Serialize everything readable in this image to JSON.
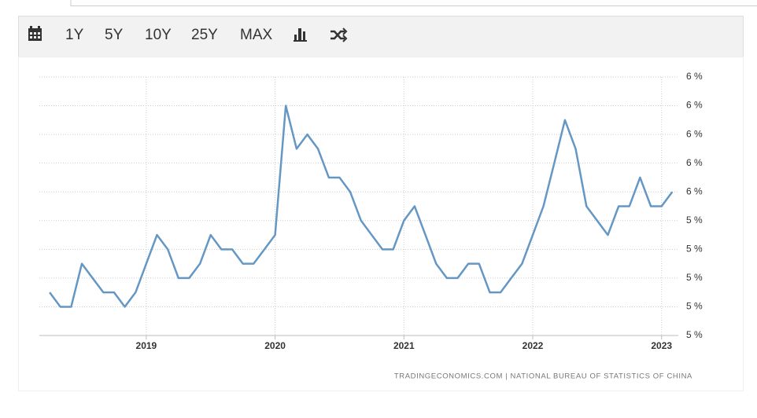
{
  "toolbar": {
    "buttons": [
      "1Y",
      "5Y",
      "10Y",
      "25Y",
      "MAX"
    ]
  },
  "chart_data": {
    "type": "line",
    "source": "TRADINGECONOMICS.COM | NATIONAL BUREAU OF STATISTICS OF CHINA",
    "x": [
      2018.25,
      2018.333,
      2018.417,
      2018.5,
      2018.583,
      2018.667,
      2018.75,
      2018.833,
      2018.917,
      2019.0,
      2019.083,
      2019.167,
      2019.25,
      2019.333,
      2019.417,
      2019.5,
      2019.583,
      2019.667,
      2019.75,
      2019.833,
      2019.917,
      2020.0,
      2020.083,
      2020.167,
      2020.25,
      2020.333,
      2020.417,
      2020.5,
      2020.583,
      2020.667,
      2020.75,
      2020.833,
      2020.917,
      2021.0,
      2021.083,
      2021.167,
      2021.25,
      2021.333,
      2021.417,
      2021.5,
      2021.583,
      2021.667,
      2021.75,
      2021.833,
      2021.917,
      2022.0,
      2022.083,
      2022.167,
      2022.25,
      2022.333,
      2022.417,
      2022.5,
      2022.583,
      2022.667,
      2022.75,
      2022.833,
      2022.917,
      2023.0,
      2023.083
    ],
    "series": [
      {
        "color": "#6597c4",
        "values": [
          4.9,
          4.8,
          4.8,
          5.1,
          5.0,
          4.9,
          4.9,
          4.8,
          4.9,
          5.1,
          5.3,
          5.2,
          5.0,
          5.0,
          5.1,
          5.3,
          5.2,
          5.2,
          5.1,
          5.1,
          5.2,
          5.3,
          6.2,
          5.9,
          6.0,
          5.9,
          5.7,
          5.7,
          5.6,
          5.4,
          5.3,
          5.2,
          5.2,
          5.4,
          5.5,
          5.3,
          5.1,
          5.0,
          5.0,
          5.1,
          5.1,
          4.9,
          4.9,
          5.0,
          5.1,
          5.3,
          5.5,
          5.8,
          6.1,
          5.9,
          5.5,
          5.4,
          5.3,
          5.5,
          5.5,
          5.7,
          5.5,
          5.5,
          5.6
        ]
      }
    ],
    "xlim": [
      2018.17,
      2023.13
    ],
    "xticks": [
      2019,
      2020,
      2021,
      2022,
      2023
    ],
    "ylim": [
      4.6,
      6.4
    ],
    "yticks": [
      {
        "value": 4.6,
        "label": "5 %"
      },
      {
        "value": 4.8,
        "label": "5 %"
      },
      {
        "value": 5.0,
        "label": "5 %"
      },
      {
        "value": 5.2,
        "label": "5 %"
      },
      {
        "value": 5.4,
        "label": "5 %"
      },
      {
        "value": 5.6,
        "label": "6 %"
      },
      {
        "value": 5.8,
        "label": "6 %"
      },
      {
        "value": 6.0,
        "label": "6 %"
      },
      {
        "value": 6.2,
        "label": "6 %"
      },
      {
        "value": 6.4,
        "label": "6 %"
      }
    ],
    "grid": true
  }
}
